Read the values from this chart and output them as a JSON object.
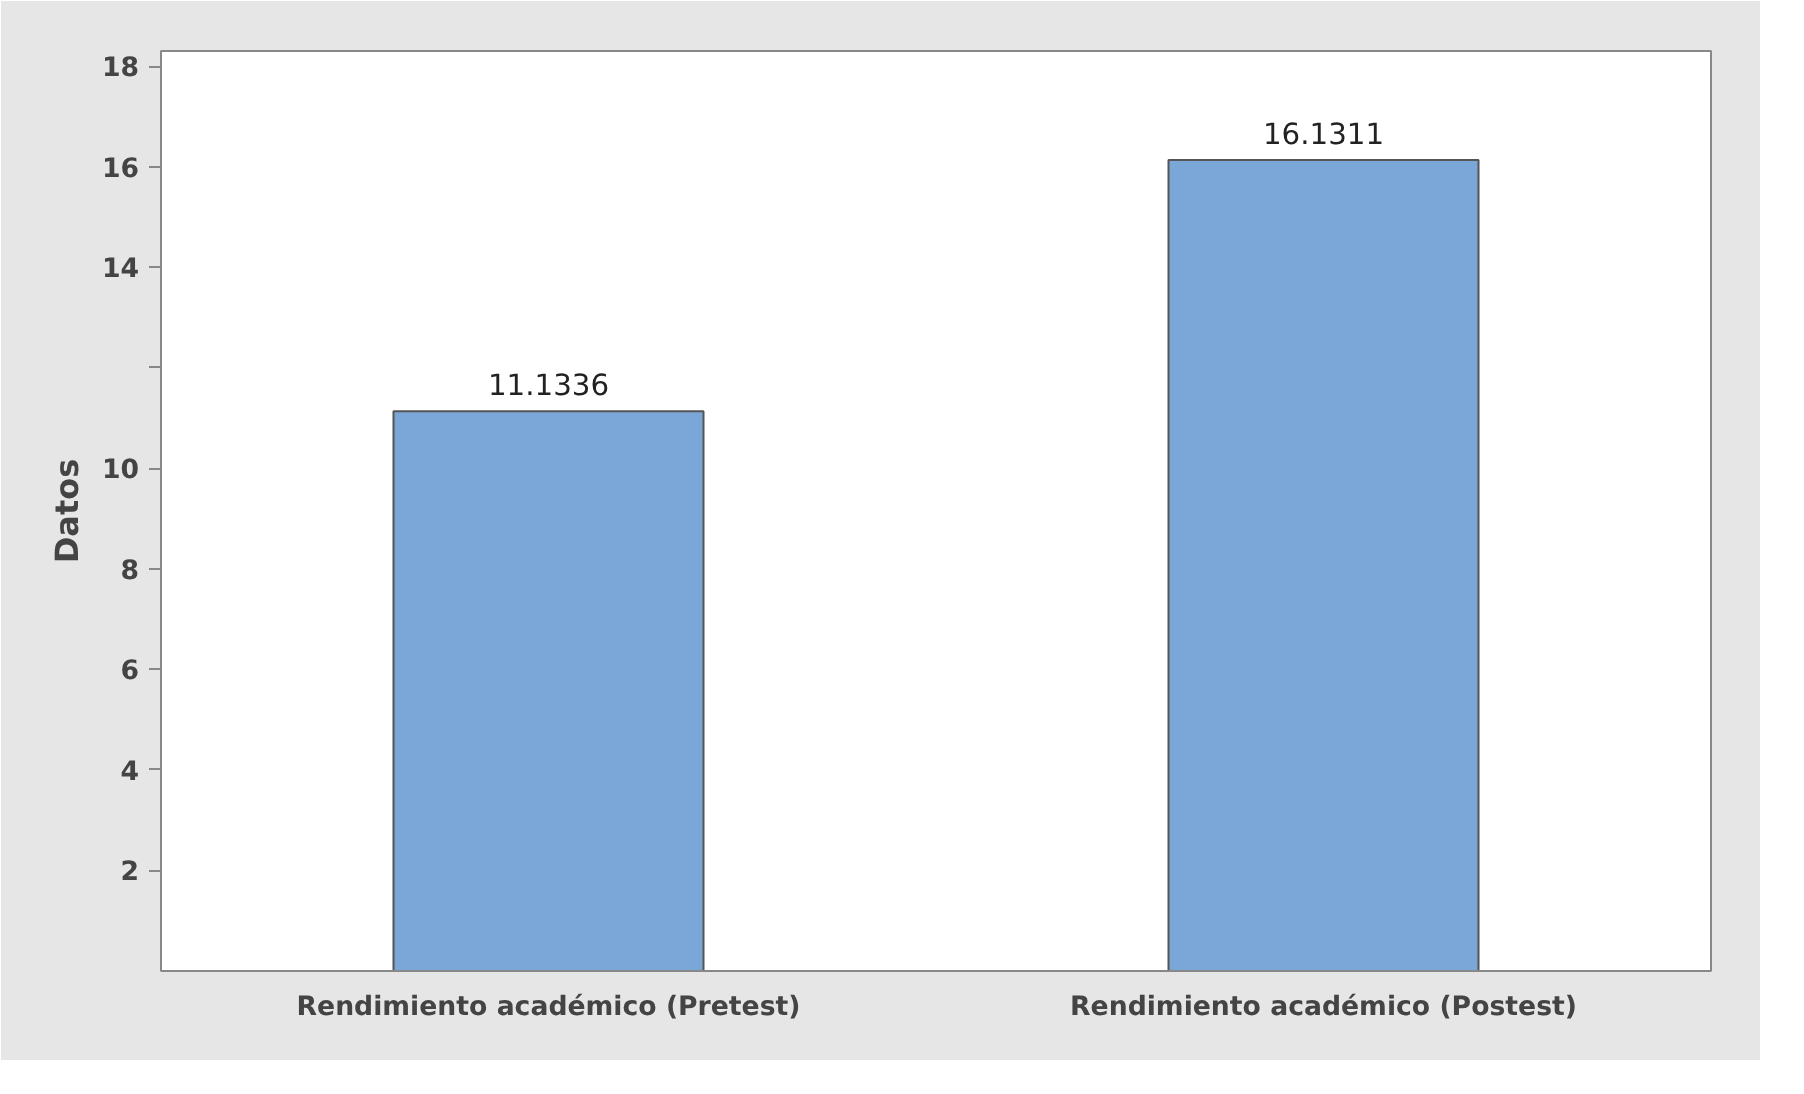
{
  "chart_data": {
    "type": "bar",
    "ylabel": "Datos",
    "categories": [
      "Rendimiento académico (Pretest)",
      "Rendimiento académico (Postest)"
    ],
    "values": [
      11.1336,
      16.1311
    ],
    "color": "#7ba7d8",
    "data_labels": true,
    "ylim": [
      0,
      18.3
    ],
    "yticks": [
      {
        "value": 2,
        "label": "2"
      },
      {
        "value": 4,
        "label": "4"
      },
      {
        "value": 6,
        "label": "6"
      },
      {
        "value": 8,
        "label": "8"
      },
      {
        "value": 10,
        "label": "10"
      },
      {
        "value": 12,
        "label": null
      },
      {
        "value": 14,
        "label": "14"
      },
      {
        "value": 16,
        "label": "16"
      },
      {
        "value": 18,
        "label": "18"
      }
    ],
    "grid": false
  }
}
